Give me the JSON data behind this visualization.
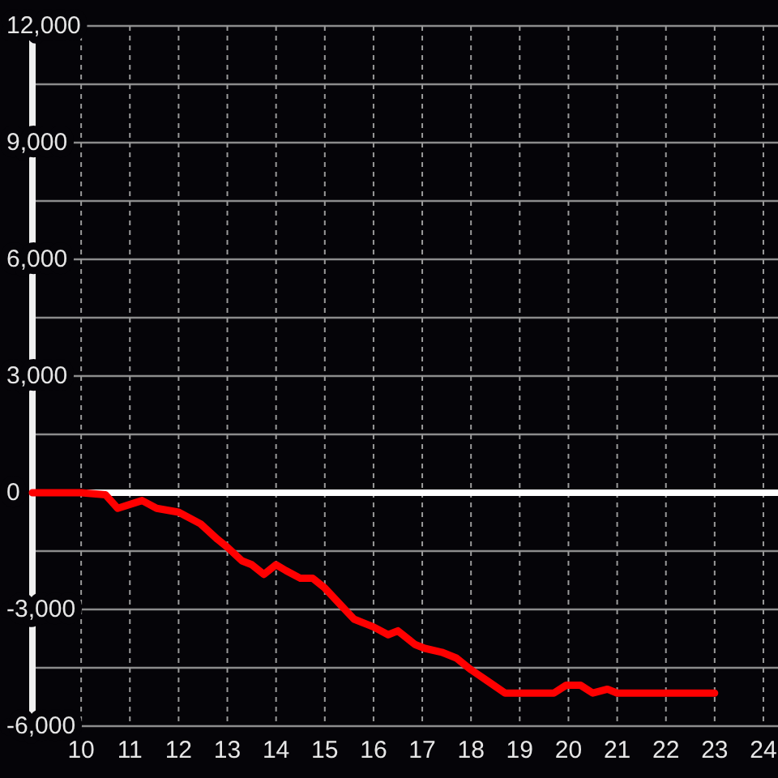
{
  "chart_data": {
    "type": "line",
    "color": "#ff0000",
    "line_style": "solid",
    "x": [
      9,
      10,
      10.5,
      10.75,
      11.25,
      11.55,
      12,
      12.45,
      12.8,
      13,
      13.3,
      13.5,
      13.75,
      14,
      14.2,
      14.5,
      14.75,
      15,
      15.3,
      15.6,
      16,
      16.3,
      16.5,
      16.85,
      17.05,
      17.4,
      17.7,
      18,
      18.35,
      18.7,
      19.7,
      19.95,
      20.25,
      20.5,
      20.8,
      21,
      23
    ],
    "values": [
      0,
      0,
      -50,
      -400,
      -200,
      -400,
      -500,
      -800,
      -1200,
      -1400,
      -1750,
      -1850,
      -2100,
      -1850,
      -2000,
      -2200,
      -2200,
      -2450,
      -2850,
      -3250,
      -3450,
      -3650,
      -3550,
      -3900,
      -4000,
      -4100,
      -4250,
      -4550,
      -4850,
      -5150,
      -5150,
      -4950,
      -4950,
      -5150,
      -5050,
      -5150,
      -5150
    ],
    "xlim": [
      9,
      24.3
    ],
    "xticks": [
      10,
      11,
      12,
      13,
      14,
      15,
      16,
      17,
      18,
      19,
      20,
      21,
      22,
      23,
      24
    ],
    "ylim": [
      -6000,
      12000
    ],
    "yticks": [
      {
        "value": -6000,
        "label": "-6,000"
      },
      {
        "value": -4500,
        "label": null
      },
      {
        "value": -3000,
        "label": "-3,000"
      },
      {
        "value": -1500,
        "label": null
      },
      0,
      {
        "value": 1500,
        "label": null
      },
      {
        "value": 3000,
        "label": "3,000"
      },
      {
        "value": 4500,
        "label": null
      },
      {
        "value": 6000,
        "label": "6,000"
      },
      {
        "value": 7500,
        "label": null
      },
      {
        "value": 9000,
        "label": "9,000"
      },
      {
        "value": 10500,
        "label": null
      },
      {
        "value": 12000,
        "label": "12,000"
      }
    ],
    "grid": true,
    "ref_lines": [
      {
        "axis": "y",
        "value": 0,
        "color": "#ffffff"
      }
    ]
  }
}
